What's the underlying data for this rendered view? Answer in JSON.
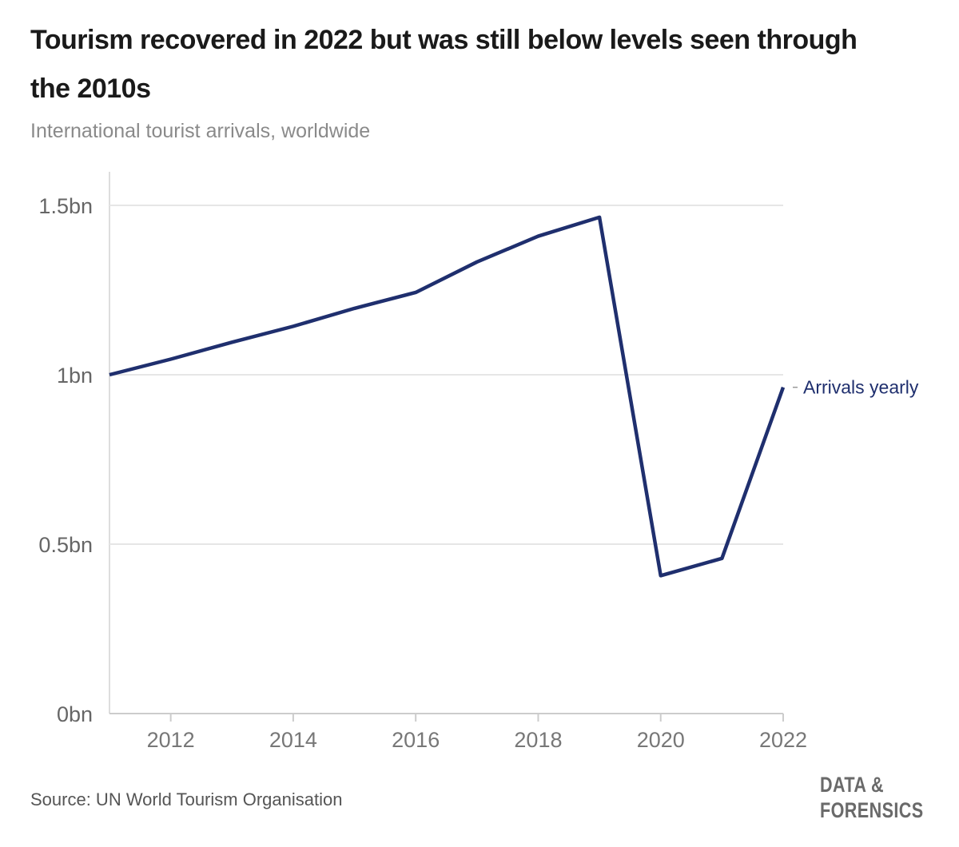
{
  "chart_data": {
    "type": "line",
    "title": "Tourism recovered in 2022 but was still below levels seen through the 2010s",
    "subtitle": "International tourist arrivals, worldwide",
    "xlabel": "",
    "ylabel": "",
    "x": [
      2011,
      2012,
      2013,
      2014,
      2015,
      2016,
      2017,
      2018,
      2019,
      2020,
      2021,
      2022
    ],
    "series": [
      {
        "name": "Arrivals yearly",
        "values": [
          1.0,
          1.046,
          1.096,
          1.143,
          1.196,
          1.243,
          1.333,
          1.409,
          1.465,
          0.407,
          0.458,
          0.963
        ],
        "color": "#1f2f6e"
      }
    ],
    "ylim": [
      0,
      1.5
    ],
    "xlim": [
      2011,
      2022
    ],
    "yticks": [
      {
        "value": 0,
        "label": "0bn"
      },
      {
        "value": 0.5,
        "label": "0.5bn"
      },
      {
        "value": 1,
        "label": "1bn"
      },
      {
        "value": 1.5,
        "label": "1.5bn"
      }
    ],
    "xticks": [
      {
        "value": 2012,
        "label": "2012"
      },
      {
        "value": 2014,
        "label": "2014"
      },
      {
        "value": 2016,
        "label": "2016"
      },
      {
        "value": 2018,
        "label": "2018"
      },
      {
        "value": 2020,
        "label": "2020"
      },
      {
        "value": 2022,
        "label": "2022"
      }
    ],
    "grid": true,
    "legend": "direct label at line end (right)",
    "source": "Source: UN World Tourism Organisation"
  },
  "branding": {
    "line1": "DATA &",
    "line2": "FORENSICS"
  }
}
